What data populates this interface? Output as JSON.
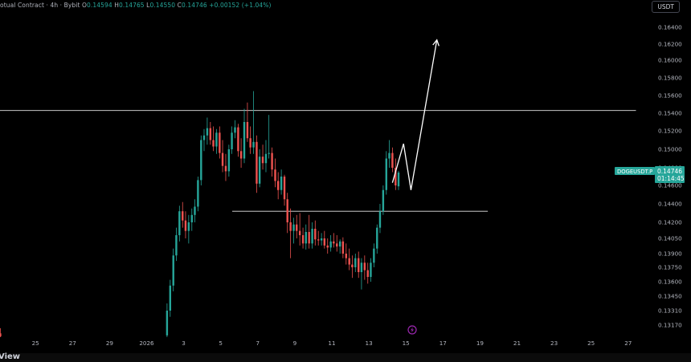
{
  "header": {
    "title": "otual Contract · 4h · Bybit",
    "o_label": "O",
    "o_value": "0.14594",
    "h_label": "H",
    "h_value": "0.14765",
    "l_label": "L",
    "l_value": "0.14550",
    "c_label": "C",
    "c_value": "0.14746",
    "change": "+0.00152 (+1.04%)"
  },
  "currency_button": "USDT",
  "price_label": {
    "symbol": "DOGEUSDT.P",
    "price": "0.14746",
    "countdown": "01:14:45"
  },
  "footer_text": "View",
  "colors": {
    "up": "#26a69a",
    "down": "#ef5350",
    "background": "#000000",
    "line": "#ffffff",
    "tag": "#26a69a",
    "event": "#9c27b0",
    "axis_text": "#b2b5be"
  },
  "event_icon": "lightning-bolt-icon",
  "chart_data": {
    "type": "candlestick",
    "symbol": "DOGEUSDT.P",
    "timeframe": "4h",
    "y_axis_ticks": [
      0.164,
      0.162,
      0.16,
      0.158,
      0.156,
      0.154,
      0.152,
      0.15,
      0.148,
      0.146,
      0.144,
      0.142,
      0.1405,
      0.139,
      0.1375,
      0.136,
      0.1345,
      0.1331,
      0.1317
    ],
    "y_tick_labels": [
      "0.16400",
      "0.16200",
      "0.16000",
      "0.15800",
      "0.15600",
      "0.15400",
      "0.15200",
      "0.15000",
      "0.14800",
      "0.14600",
      "0.14400",
      "0.14200",
      "0.14050",
      "0.13900",
      "0.13750",
      "0.13600",
      "0.13450",
      "0.13310",
      "0.13170"
    ],
    "x_axis_labels": [
      "25",
      "27",
      "29",
      "2026",
      "3",
      "5",
      "7",
      "9",
      "11",
      "13",
      "15",
      "17",
      "19",
      "21",
      "23",
      "25",
      "27"
    ],
    "x_tick_days": [
      25,
      27,
      29,
      31,
      33,
      35,
      37,
      39,
      41,
      43,
      45,
      47,
      49,
      51,
      53,
      55,
      57
    ],
    "horizontal_levels": [
      {
        "price": 0.1543,
        "from_day": 22.9,
        "to_day": 57.4
      },
      {
        "price": 0.1432,
        "from_day": 35.6,
        "to_day": 49.4
      }
    ],
    "last_price": 0.14746,
    "projection_path": [
      [
        44.25,
        0.1463
      ],
      [
        44.85,
        0.1506
      ],
      [
        45.25,
        0.1455
      ],
      [
        46.65,
        0.1625
      ]
    ],
    "candles": [
      [
        22.75,
        0.1326,
        0.1332,
        0.1305,
        0.1312
      ],
      [
        22.92,
        0.1312,
        0.1318,
        0.1305,
        0.1309
      ],
      [
        23.08,
        0.1309,
        0.1314,
        0.1305,
        0.1306
      ],
      [
        32.08,
        0.1307,
        0.1338,
        0.13,
        0.1331
      ],
      [
        32.25,
        0.1331,
        0.1362,
        0.1325,
        0.1356
      ],
      [
        32.42,
        0.1356,
        0.1395,
        0.135,
        0.1388
      ],
      [
        32.58,
        0.1388,
        0.1415,
        0.1382,
        0.1408
      ],
      [
        32.75,
        0.1408,
        0.1438,
        0.1402,
        0.1432
      ],
      [
        32.92,
        0.1432,
        0.1442,
        0.1415,
        0.1422
      ],
      [
        33.08,
        0.1422,
        0.1432,
        0.1405,
        0.1412
      ],
      [
        33.25,
        0.1412,
        0.1428,
        0.14,
        0.142
      ],
      [
        33.42,
        0.142,
        0.1435,
        0.1412,
        0.1428
      ],
      [
        33.58,
        0.1428,
        0.1445,
        0.142,
        0.1437
      ],
      [
        33.75,
        0.1437,
        0.147,
        0.1432,
        0.1466
      ],
      [
        33.92,
        0.1466,
        0.1515,
        0.146,
        0.151
      ],
      [
        34.08,
        0.151,
        0.1522,
        0.1498,
        0.1515
      ],
      [
        34.25,
        0.1515,
        0.1535,
        0.1505,
        0.1523
      ],
      [
        34.42,
        0.1523,
        0.153,
        0.1505,
        0.151
      ],
      [
        34.58,
        0.151,
        0.1525,
        0.1498,
        0.1503
      ],
      [
        34.75,
        0.1503,
        0.1522,
        0.1495,
        0.1518
      ],
      [
        34.92,
        0.1518,
        0.1525,
        0.149,
        0.1496
      ],
      [
        35.08,
        0.1496,
        0.151,
        0.1475,
        0.1482
      ],
      [
        35.25,
        0.1482,
        0.1495,
        0.1465,
        0.1476
      ],
      [
        35.42,
        0.1476,
        0.1505,
        0.147,
        0.15
      ],
      [
        35.58,
        0.15,
        0.1525,
        0.1495,
        0.1518
      ],
      [
        35.75,
        0.1518,
        0.1532,
        0.1512,
        0.1524
      ],
      [
        35.92,
        0.1524,
        0.1528,
        0.1492,
        0.1498
      ],
      [
        36.08,
        0.1498,
        0.1512,
        0.148,
        0.149
      ],
      [
        36.25,
        0.149,
        0.1545,
        0.1485,
        0.153
      ],
      [
        36.42,
        0.153,
        0.1552,
        0.1508,
        0.1512
      ],
      [
        36.58,
        0.1512,
        0.1525,
        0.1495,
        0.1502
      ],
      [
        36.75,
        0.1502,
        0.1565,
        0.1495,
        0.1508
      ],
      [
        36.92,
        0.1508,
        0.1515,
        0.1452,
        0.1462
      ],
      [
        37.08,
        0.1462,
        0.15,
        0.1458,
        0.1492
      ],
      [
        37.25,
        0.1492,
        0.1505,
        0.1478,
        0.1485
      ],
      [
        37.42,
        0.1485,
        0.151,
        0.1475,
        0.1495
      ],
      [
        37.58,
        0.1495,
        0.1538,
        0.149,
        0.1496
      ],
      [
        37.75,
        0.1496,
        0.1502,
        0.147,
        0.1478
      ],
      [
        37.92,
        0.1478,
        0.149,
        0.1458,
        0.1465
      ],
      [
        38.08,
        0.1465,
        0.1475,
        0.1445,
        0.1455
      ],
      [
        38.25,
        0.1455,
        0.1478,
        0.145,
        0.147
      ],
      [
        38.42,
        0.147,
        0.1472,
        0.1438,
        0.1445
      ],
      [
        38.58,
        0.1445,
        0.1452,
        0.141,
        0.142
      ],
      [
        38.75,
        0.142,
        0.1435,
        0.1385,
        0.1412
      ],
      [
        38.92,
        0.1412,
        0.1425,
        0.14,
        0.1418
      ],
      [
        39.08,
        0.1418,
        0.1428,
        0.1405,
        0.1412
      ],
      [
        39.25,
        0.1412,
        0.143,
        0.1398,
        0.1408
      ],
      [
        39.42,
        0.1408,
        0.1415,
        0.1395,
        0.14
      ],
      [
        39.58,
        0.14,
        0.1418,
        0.1394,
        0.1411
      ],
      [
        39.75,
        0.1411,
        0.1428,
        0.1395,
        0.14
      ],
      [
        39.92,
        0.14,
        0.142,
        0.1395,
        0.1414
      ],
      [
        40.08,
        0.1414,
        0.1422,
        0.1398,
        0.1404
      ],
      [
        40.25,
        0.1404,
        0.1412,
        0.1398,
        0.1403
      ],
      [
        40.42,
        0.1403,
        0.141,
        0.1398,
        0.1405
      ],
      [
        40.58,
        0.1405,
        0.1412,
        0.1395,
        0.1398
      ],
      [
        40.75,
        0.1398,
        0.1405,
        0.139,
        0.1396
      ],
      [
        40.92,
        0.1396,
        0.1408,
        0.1392,
        0.1402
      ],
      [
        41.08,
        0.1402,
        0.141,
        0.1396,
        0.14
      ],
      [
        41.25,
        0.14,
        0.1408,
        0.1392,
        0.1397
      ],
      [
        41.42,
        0.1397,
        0.1404,
        0.139,
        0.1402
      ],
      [
        41.58,
        0.1402,
        0.1406,
        0.1385,
        0.139
      ],
      [
        41.75,
        0.139,
        0.14,
        0.1378,
        0.1385
      ],
      [
        41.92,
        0.1385,
        0.1395,
        0.1372,
        0.1378
      ],
      [
        42.08,
        0.1378,
        0.1388,
        0.1364,
        0.1375
      ],
      [
        42.25,
        0.1375,
        0.139,
        0.137,
        0.1385
      ],
      [
        42.42,
        0.1385,
        0.1392,
        0.1364,
        0.137
      ],
      [
        42.58,
        0.137,
        0.1385,
        0.1352,
        0.138
      ],
      [
        42.75,
        0.138,
        0.1388,
        0.1362,
        0.1372
      ],
      [
        42.92,
        0.1372,
        0.138,
        0.1358,
        0.1365
      ],
      [
        43.08,
        0.1365,
        0.1385,
        0.136,
        0.138
      ],
      [
        43.25,
        0.138,
        0.14,
        0.1375,
        0.1395
      ],
      [
        43.42,
        0.1395,
        0.1418,
        0.139,
        0.1415
      ],
      [
        43.58,
        0.1415,
        0.144,
        0.141,
        0.1432
      ],
      [
        43.75,
        0.1432,
        0.146,
        0.1428,
        0.1455
      ],
      [
        43.92,
        0.1455,
        0.1498,
        0.145,
        0.149
      ],
      [
        44.08,
        0.149,
        0.151,
        0.148,
        0.1496
      ],
      [
        44.25,
        0.1496,
        0.1502,
        0.1475,
        0.148
      ],
      [
        44.42,
        0.148,
        0.149,
        0.1455,
        0.146
      ],
      [
        44.58,
        0.1459,
        0.14765,
        0.1455,
        0.14746
      ]
    ]
  }
}
